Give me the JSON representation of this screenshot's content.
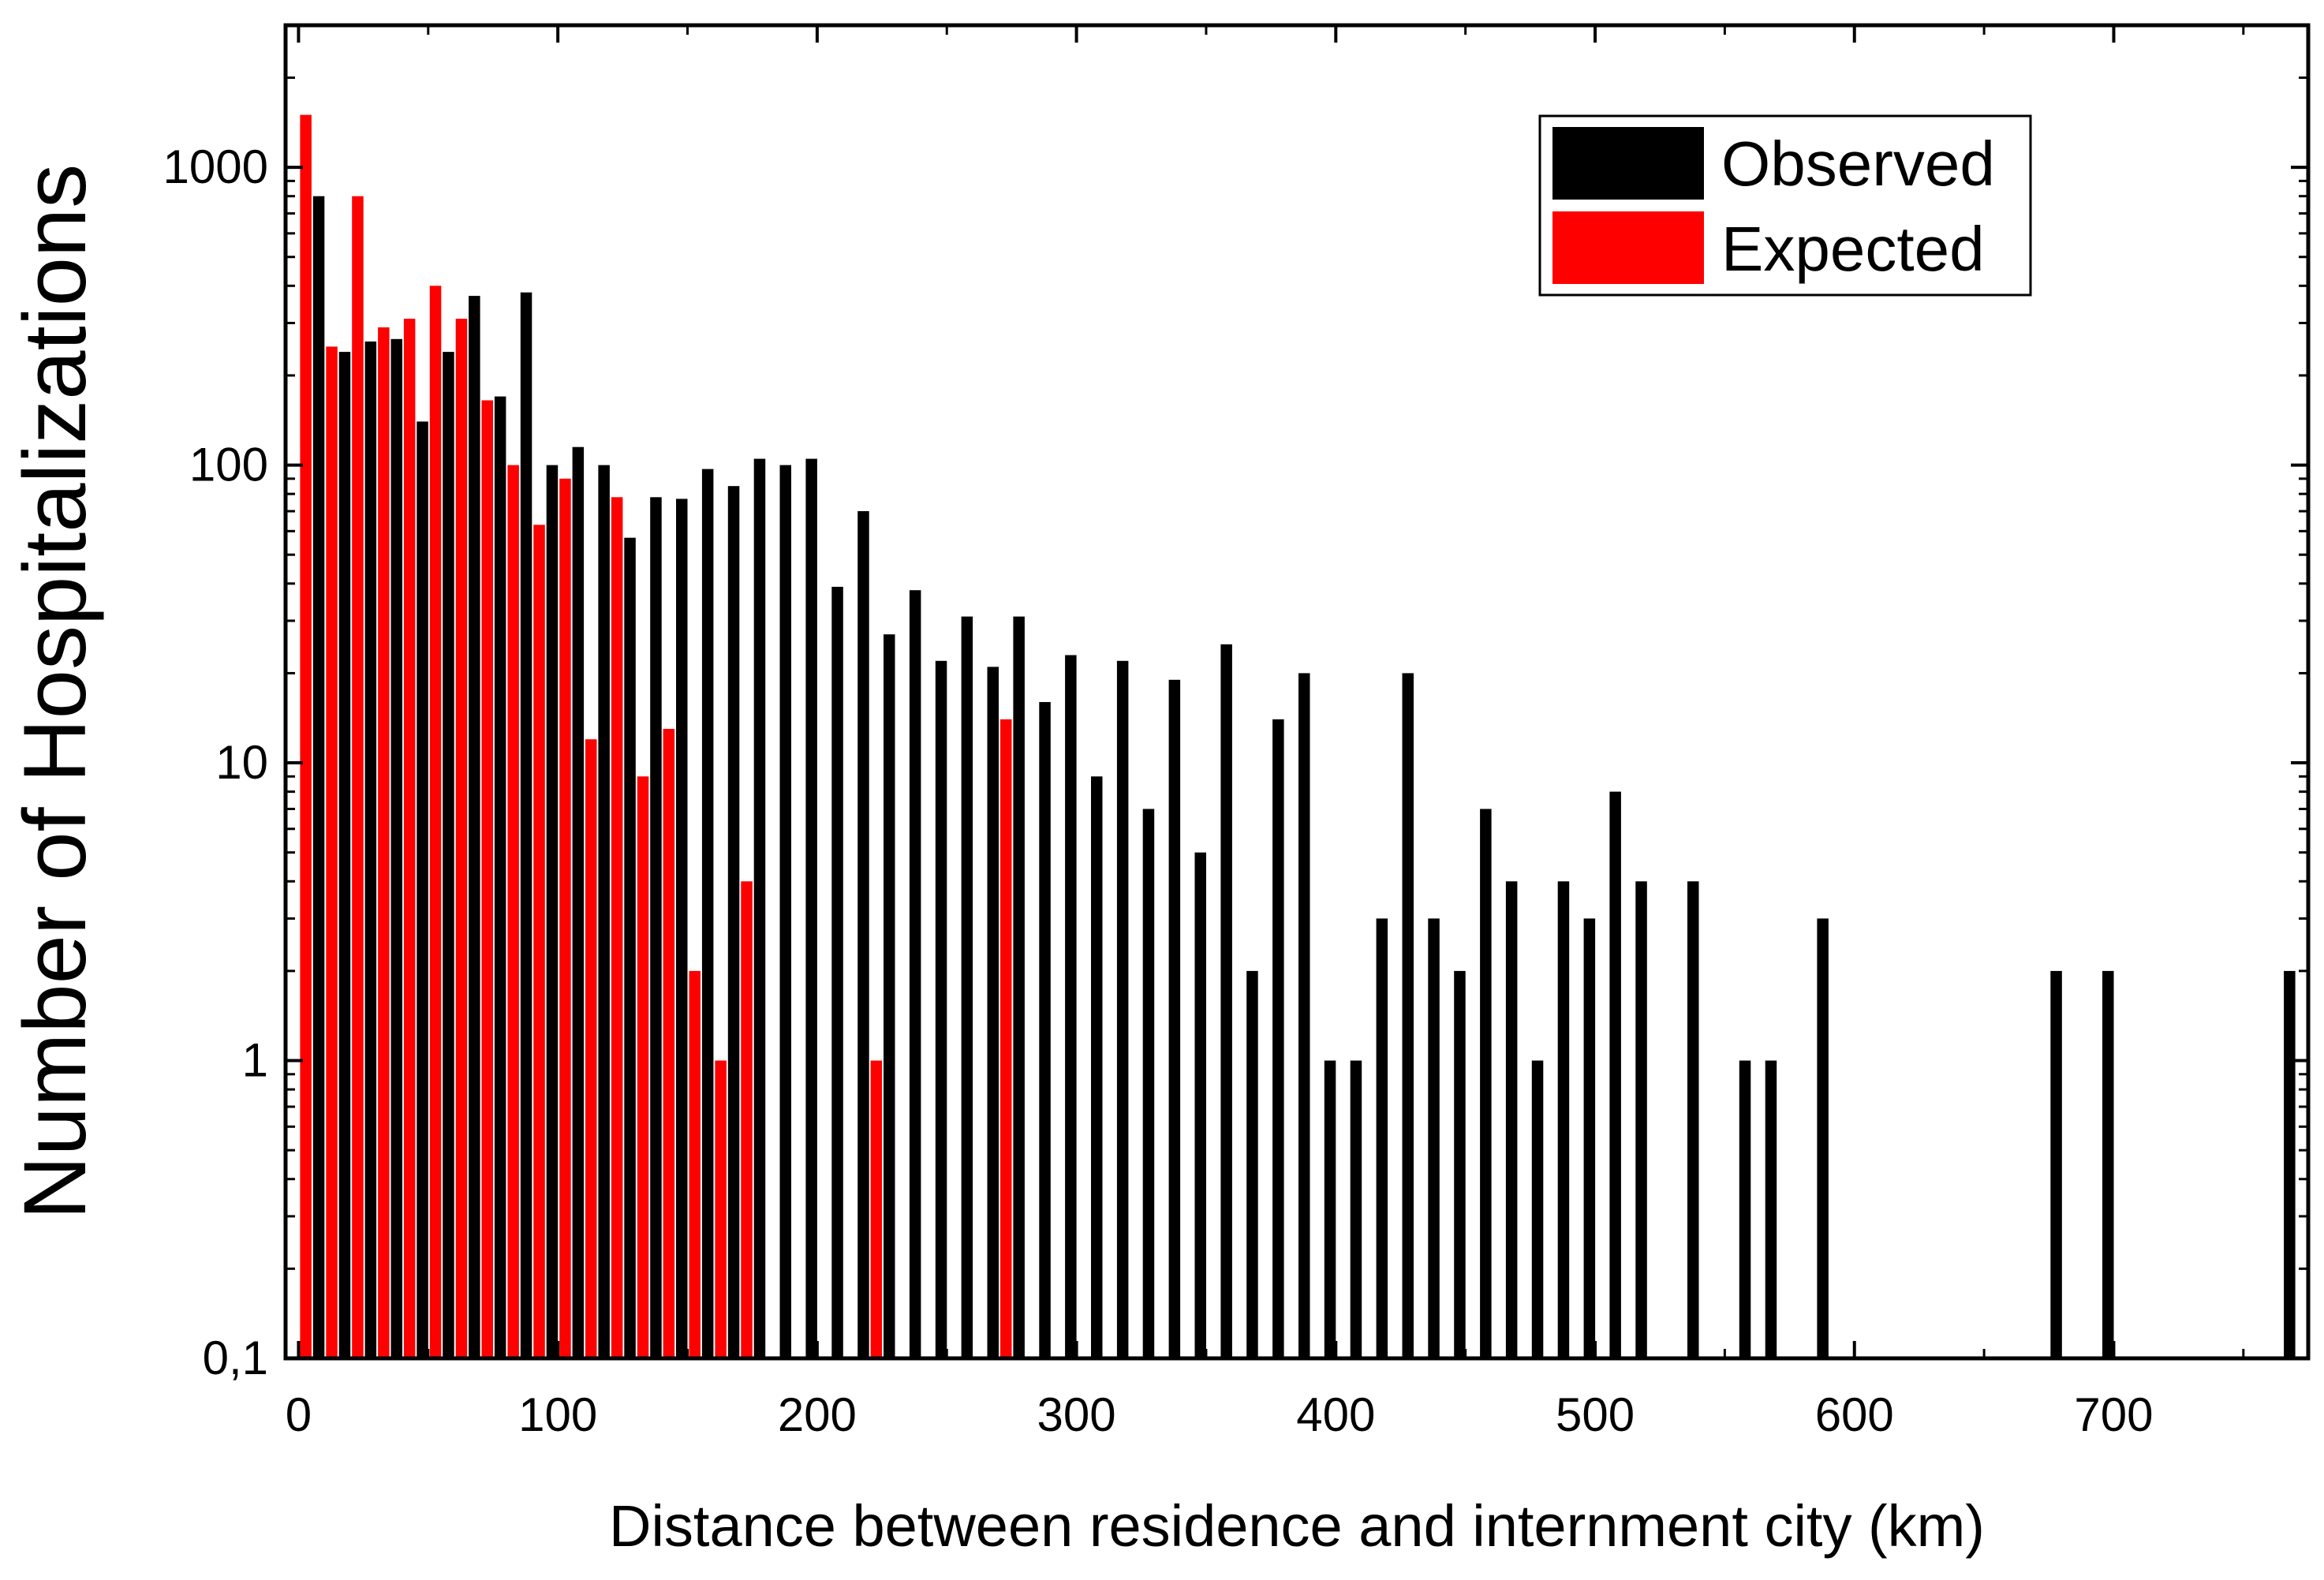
{
  "chart_data": {
    "type": "bar",
    "xlabel": "Distance between residence and internment city (km)",
    "ylabel": "Number of Hospitalizations",
    "yscale": "log",
    "ylim": [
      0.1,
      3000
    ],
    "xlim": [
      -5,
      775
    ],
    "x_ticks": [
      0,
      100,
      200,
      300,
      400,
      500,
      600,
      700
    ],
    "y_ticks": [
      {
        "value": 0.1,
        "label": "0,1"
      },
      {
        "value": 1,
        "label": "1"
      },
      {
        "value": 10,
        "label": "10"
      },
      {
        "value": 100,
        "label": "100"
      },
      {
        "value": 1000,
        "label": "1000"
      }
    ],
    "legend": {
      "position": "top-right",
      "entries": [
        "Observed",
        "Expected"
      ]
    },
    "colors": {
      "Observed": "#000000",
      "Expected": "#ff0000"
    },
    "series": [
      {
        "name": "Observed",
        "points": [
          [
            10,
            800
          ],
          [
            20,
            240
          ],
          [
            30,
            260
          ],
          [
            40,
            265
          ],
          [
            50,
            140
          ],
          [
            60,
            240
          ],
          [
            70,
            370
          ],
          [
            80,
            170
          ],
          [
            90,
            380
          ],
          [
            100,
            100
          ],
          [
            110,
            115
          ],
          [
            120,
            100
          ],
          [
            130,
            57
          ],
          [
            140,
            78
          ],
          [
            150,
            77
          ],
          [
            160,
            97
          ],
          [
            170,
            85
          ],
          [
            180,
            105
          ],
          [
            190,
            100
          ],
          [
            200,
            105
          ],
          [
            210,
            39
          ],
          [
            220,
            70
          ],
          [
            230,
            27
          ],
          [
            240,
            38
          ],
          [
            250,
            22
          ],
          [
            260,
            31
          ],
          [
            270,
            21
          ],
          [
            280,
            31
          ],
          [
            290,
            16
          ],
          [
            300,
            23
          ],
          [
            310,
            9
          ],
          [
            320,
            22
          ],
          [
            330,
            7
          ],
          [
            340,
            19
          ],
          [
            350,
            5
          ],
          [
            360,
            25
          ],
          [
            370,
            2
          ],
          [
            380,
            14
          ],
          [
            390,
            20
          ],
          [
            400,
            1
          ],
          [
            410,
            1
          ],
          [
            420,
            3
          ],
          [
            430,
            20
          ],
          [
            440,
            3
          ],
          [
            450,
            2
          ],
          [
            460,
            7
          ],
          [
            470,
            4
          ],
          [
            480,
            1
          ],
          [
            490,
            4
          ],
          [
            500,
            3
          ],
          [
            510,
            8
          ],
          [
            520,
            4
          ],
          [
            540,
            4
          ],
          [
            560,
            1
          ],
          [
            570,
            1
          ],
          [
            590,
            3
          ],
          [
            680,
            2
          ],
          [
            700,
            2
          ],
          [
            770,
            2
          ]
        ]
      },
      {
        "name": "Expected",
        "points": [
          [
            0,
            1500
          ],
          [
            10,
            250
          ],
          [
            20,
            800
          ],
          [
            30,
            290
          ],
          [
            40,
            310
          ],
          [
            50,
            400
          ],
          [
            60,
            310
          ],
          [
            70,
            165
          ],
          [
            80,
            100
          ],
          [
            90,
            63
          ],
          [
            100,
            90
          ],
          [
            110,
            12
          ],
          [
            120,
            78
          ],
          [
            130,
            9
          ],
          [
            140,
            13
          ],
          [
            150,
            2
          ],
          [
            160,
            1
          ],
          [
            170,
            4
          ],
          [
            220,
            1
          ],
          [
            270,
            14
          ]
        ]
      }
    ]
  }
}
